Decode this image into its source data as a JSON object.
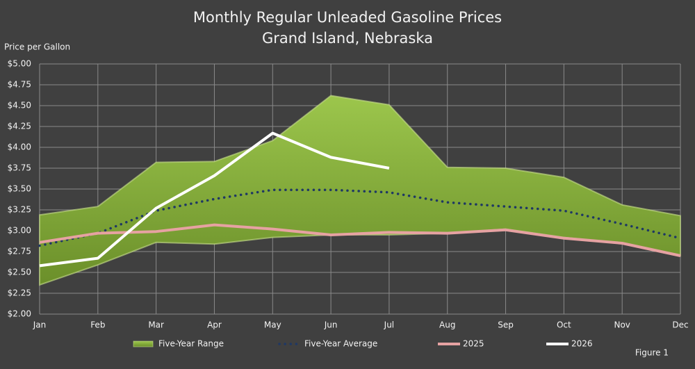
{
  "chart_data": {
    "type": "line",
    "title": "Monthly Regular Unleaded Gasoline Prices",
    "subtitle": "Grand Island, Nebraska",
    "y_label": "Price per Gallon",
    "annotation": "Figure 1",
    "categories": [
      "Jan",
      "Feb",
      "Mar",
      "Apr",
      "May",
      "Jun",
      "Jul",
      "Aug",
      "Sep",
      "Oct",
      "Nov",
      "Dec"
    ],
    "series": [
      {
        "name": "Five-Year Range",
        "style": "range",
        "color": "#86ad3c",
        "values": [
          3.19,
          3.29,
          3.82,
          3.83,
          4.08,
          4.62,
          4.51,
          3.76,
          3.75,
          3.64,
          3.31,
          3.18
        ],
        "low": [
          2.35,
          2.59,
          2.86,
          2.84,
          2.92,
          2.95,
          2.95,
          2.97,
          3.02,
          2.92,
          2.85,
          2.7
        ]
      },
      {
        "name": "Five-Year Average",
        "style": "dotted",
        "color": "#1f3864",
        "values": [
          2.82,
          2.97,
          3.24,
          3.38,
          3.49,
          3.49,
          3.46,
          3.34,
          3.29,
          3.24,
          3.08,
          2.91
        ]
      },
      {
        "name": "2025",
        "style": "solid",
        "color": "#e6a2a2",
        "values": [
          2.86,
          2.97,
          2.99,
          3.07,
          3.02,
          2.95,
          2.98,
          2.97,
          3.01,
          2.91,
          2.85,
          2.7
        ]
      },
      {
        "name": "2026",
        "style": "solid",
        "color": "#ffffff",
        "values": [
          2.58,
          2.67,
          3.27,
          3.66,
          4.17,
          3.88,
          3.75,
          null,
          null,
          null,
          null,
          null
        ]
      }
    ],
    "ylim": [
      2,
      5
    ],
    "yticks": [
      {
        "value": 2,
        "label": "$2.00"
      },
      {
        "value": 2.25,
        "label": "$2.25"
      },
      {
        "value": 2.5,
        "label": "$2.50"
      },
      {
        "value": 2.75,
        "label": "$2.75"
      },
      {
        "value": 3,
        "label": "$3.00"
      },
      {
        "value": 3.25,
        "label": "$3.25"
      },
      {
        "value": 3.5,
        "label": "$3.50"
      },
      {
        "value": 3.75,
        "label": "$3.75"
      },
      {
        "value": 4,
        "label": "$4.00"
      },
      {
        "value": 4.25,
        "label": "$4.25"
      },
      {
        "value": 4.5,
        "label": "$4.50"
      },
      {
        "value": 4.75,
        "label": "$4.75"
      },
      {
        "value": 5,
        "label": "$5.00"
      }
    ],
    "grid": true,
    "legend": "bottom"
  }
}
